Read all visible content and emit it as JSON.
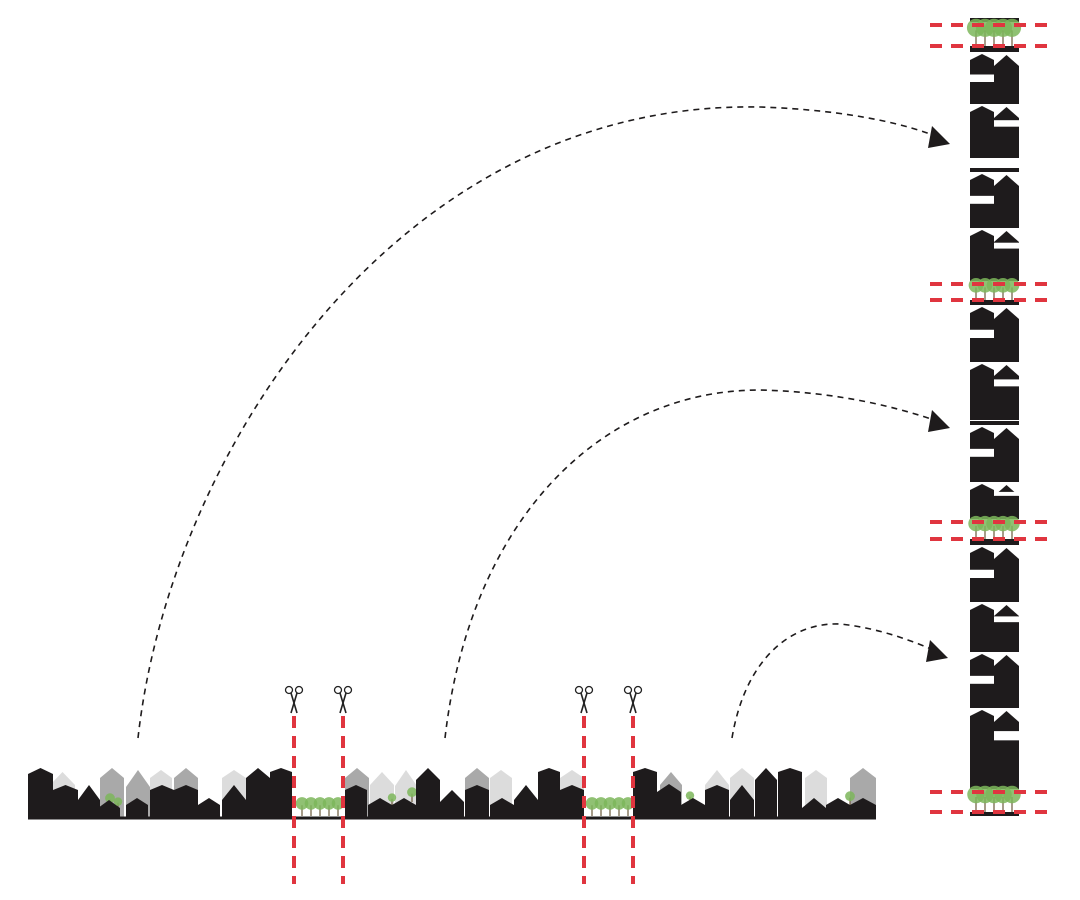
{
  "colors": {
    "building_dark": "#1e1b1c",
    "building_mid": "#a9a9a9",
    "building_light": "#dcdcdc",
    "cut_line": "#e0353f",
    "tree": "#7db65a",
    "arrow": "#1e1b1c"
  },
  "icons": {
    "cut": "scissors-icon"
  }
}
